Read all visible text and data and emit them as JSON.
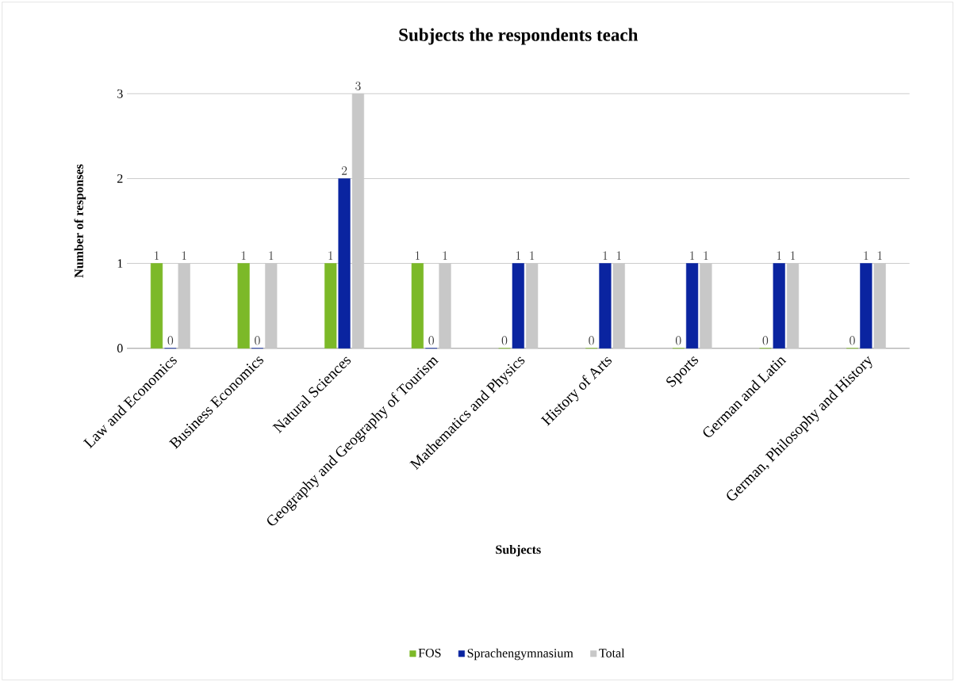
{
  "chart_data": {
    "type": "bar",
    "title": "Subjects the respondents teach",
    "xlabel": "Subjects",
    "ylabel": "Number of responses",
    "categories": [
      "Law and Economics",
      "Business Economics",
      "Natural Sciences",
      "Geography and Geography of Tourism",
      "Mathematics and Physics",
      "History of Arts",
      "Sports",
      "German and Latin",
      "German, Philosophy and History"
    ],
    "series": [
      {
        "name": "FOS",
        "color": "#7cb928",
        "values": [
          1,
          1,
          1,
          1,
          0,
          0,
          0,
          0,
          0
        ]
      },
      {
        "name": "Sprachengymnasium",
        "color": "#0a24a0",
        "values": [
          0,
          0,
          2,
          0,
          1,
          1,
          1,
          1,
          1
        ]
      },
      {
        "name": "Total",
        "color": "#c8c8c8",
        "values": [
          1,
          1,
          3,
          1,
          1,
          1,
          1,
          1,
          1
        ]
      }
    ],
    "ylim": [
      0,
      3
    ],
    "yticks": [
      0,
      1,
      2,
      3
    ],
    "grid": "y",
    "legend": "bottom",
    "data_labels": true
  }
}
